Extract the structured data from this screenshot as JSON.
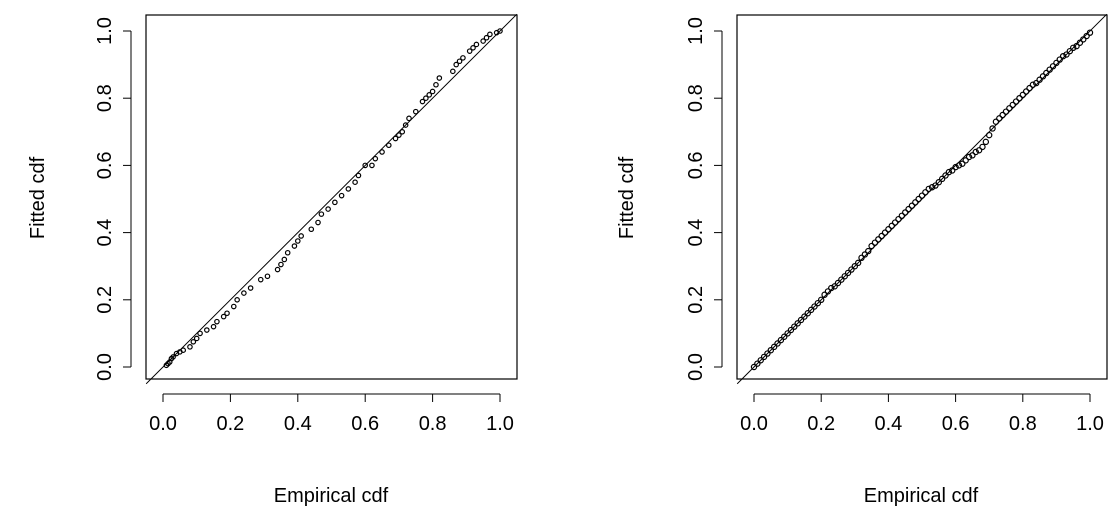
{
  "chart_data": [
    {
      "type": "scatter",
      "xlabel": "Empirical cdf",
      "ylabel": "Fitted cdf",
      "xlim": [
        0,
        1
      ],
      "ylim": [
        0,
        1
      ],
      "x_ticks": [
        "0.0",
        "0.2",
        "0.4",
        "0.6",
        "0.8",
        "1.0"
      ],
      "y_ticks": [
        "0.0",
        "0.2",
        "0.4",
        "0.6",
        "0.8",
        "1.0"
      ],
      "reference_line": "y = x",
      "x": [
        0.01,
        0.015,
        0.02,
        0.025,
        0.03,
        0.04,
        0.05,
        0.06,
        0.08,
        0.09,
        0.1,
        0.11,
        0.13,
        0.15,
        0.16,
        0.18,
        0.19,
        0.21,
        0.22,
        0.24,
        0.26,
        0.29,
        0.31,
        0.34,
        0.35,
        0.36,
        0.37,
        0.39,
        0.4,
        0.41,
        0.44,
        0.46,
        0.47,
        0.49,
        0.51,
        0.53,
        0.55,
        0.57,
        0.58,
        0.6,
        0.62,
        0.63,
        0.65,
        0.67,
        0.69,
        0.7,
        0.71,
        0.72,
        0.73,
        0.75,
        0.77,
        0.78,
        0.79,
        0.8,
        0.81,
        0.82,
        0.86,
        0.87,
        0.88,
        0.89,
        0.91,
        0.92,
        0.93,
        0.95,
        0.96,
        0.97,
        0.99,
        1.0
      ],
      "y": [
        0.005,
        0.01,
        0.015,
        0.025,
        0.03,
        0.04,
        0.045,
        0.05,
        0.06,
        0.075,
        0.085,
        0.1,
        0.11,
        0.12,
        0.135,
        0.15,
        0.16,
        0.18,
        0.2,
        0.22,
        0.235,
        0.26,
        0.27,
        0.29,
        0.305,
        0.32,
        0.34,
        0.36,
        0.375,
        0.39,
        0.41,
        0.43,
        0.455,
        0.47,
        0.49,
        0.51,
        0.53,
        0.55,
        0.57,
        0.6,
        0.6,
        0.62,
        0.64,
        0.66,
        0.68,
        0.69,
        0.7,
        0.72,
        0.74,
        0.76,
        0.79,
        0.8,
        0.81,
        0.82,
        0.84,
        0.86,
        0.88,
        0.9,
        0.91,
        0.92,
        0.94,
        0.95,
        0.96,
        0.97,
        0.98,
        0.99,
        0.995,
        1.0
      ]
    },
    {
      "type": "scatter",
      "xlabel": "Empirical cdf",
      "ylabel": "Fitted cdf",
      "xlim": [
        0,
        1
      ],
      "ylim": [
        0,
        1
      ],
      "x_ticks": [
        "0.0",
        "0.2",
        "0.4",
        "0.6",
        "0.8",
        "1.0"
      ],
      "y_ticks": [
        "0.0",
        "0.2",
        "0.4",
        "0.6",
        "0.8",
        "1.0"
      ],
      "reference_line": "y = x",
      "x": [
        0.0,
        0.01,
        0.02,
        0.03,
        0.04,
        0.05,
        0.06,
        0.07,
        0.08,
        0.09,
        0.1,
        0.11,
        0.12,
        0.13,
        0.14,
        0.15,
        0.16,
        0.17,
        0.18,
        0.19,
        0.2,
        0.21,
        0.22,
        0.23,
        0.24,
        0.25,
        0.26,
        0.27,
        0.28,
        0.29,
        0.3,
        0.31,
        0.32,
        0.33,
        0.34,
        0.35,
        0.36,
        0.37,
        0.38,
        0.39,
        0.4,
        0.41,
        0.42,
        0.43,
        0.44,
        0.45,
        0.46,
        0.47,
        0.48,
        0.49,
        0.5,
        0.51,
        0.52,
        0.53,
        0.54,
        0.55,
        0.56,
        0.57,
        0.58,
        0.59,
        0.6,
        0.61,
        0.62,
        0.63,
        0.64,
        0.65,
        0.66,
        0.67,
        0.68,
        0.69,
        0.7,
        0.71,
        0.72,
        0.73,
        0.74,
        0.75,
        0.76,
        0.77,
        0.78,
        0.79,
        0.8,
        0.81,
        0.82,
        0.83,
        0.84,
        0.85,
        0.86,
        0.87,
        0.88,
        0.89,
        0.9,
        0.91,
        0.92,
        0.93,
        0.94,
        0.95,
        0.96,
        0.97,
        0.98,
        0.99,
        1.0
      ],
      "y": [
        0.0,
        0.01,
        0.02,
        0.03,
        0.04,
        0.05,
        0.06,
        0.07,
        0.08,
        0.09,
        0.1,
        0.11,
        0.12,
        0.13,
        0.14,
        0.15,
        0.16,
        0.17,
        0.18,
        0.19,
        0.2,
        0.215,
        0.225,
        0.235,
        0.24,
        0.25,
        0.26,
        0.27,
        0.28,
        0.29,
        0.3,
        0.31,
        0.325,
        0.335,
        0.345,
        0.36,
        0.37,
        0.38,
        0.39,
        0.4,
        0.41,
        0.42,
        0.43,
        0.44,
        0.45,
        0.46,
        0.47,
        0.48,
        0.49,
        0.5,
        0.51,
        0.52,
        0.53,
        0.535,
        0.54,
        0.55,
        0.56,
        0.57,
        0.58,
        0.585,
        0.595,
        0.6,
        0.605,
        0.615,
        0.625,
        0.63,
        0.64,
        0.645,
        0.655,
        0.67,
        0.69,
        0.71,
        0.73,
        0.74,
        0.75,
        0.76,
        0.77,
        0.78,
        0.79,
        0.8,
        0.81,
        0.82,
        0.83,
        0.84,
        0.845,
        0.855,
        0.865,
        0.875,
        0.885,
        0.895,
        0.905,
        0.915,
        0.925,
        0.93,
        0.94,
        0.95,
        0.955,
        0.965,
        0.975,
        0.985,
        0.995
      ]
    }
  ]
}
